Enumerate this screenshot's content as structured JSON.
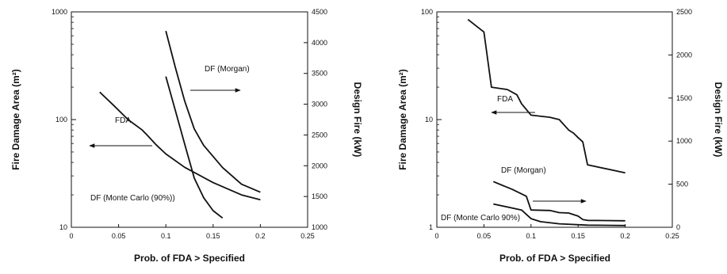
{
  "chart_data": [
    {
      "type": "line",
      "xlabel": "Prob. of FDA > Specified",
      "ylabel": "Fire Damage Area (m²)",
      "y2label": "Design Fire (kW)",
      "xlim": [
        0,
        0.25
      ],
      "ylim": [
        10,
        1000
      ],
      "ylog": true,
      "y2lim": [
        1000,
        4500
      ],
      "xticks": [
        "0",
        "0.05",
        "0.1",
        "0.15",
        "0.2",
        "0.25"
      ],
      "yticks": [
        "10",
        "100",
        "1000"
      ],
      "y2ticks": [
        "1000",
        "1500",
        "2000",
        "2500",
        "3000",
        "3500",
        "4000",
        "4500"
      ],
      "series": [
        {
          "name": "FDA",
          "axis": "left",
          "x": [
            0.03,
            0.045,
            0.06,
            0.075,
            0.08,
            0.09,
            0.1,
            0.12,
            0.15,
            0.18,
            0.2
          ],
          "y": [
            180,
            135,
            100,
            80,
            72,
            58,
            48,
            36,
            26,
            20,
            18
          ]
        },
        {
          "name": "DF (Morgan)",
          "axis": "right",
          "x": [
            0.1,
            0.11,
            0.12,
            0.13,
            0.14,
            0.15,
            0.16,
            0.18,
            0.2
          ],
          "y": [
            4190,
            3600,
            3050,
            2600,
            2330,
            2150,
            1970,
            1700,
            1570
          ]
        },
        {
          "name": "DF (Monte Carlo (90%))",
          "axis": "right",
          "x": [
            0.1,
            0.11,
            0.12,
            0.13,
            0.14,
            0.15,
            0.16
          ],
          "y": [
            3450,
            2900,
            2350,
            1800,
            1480,
            1270,
            1150
          ]
        }
      ],
      "annotations": [
        {
          "text": "DF (Morgan)",
          "arrow": "right"
        },
        {
          "text": "FDA",
          "arrow": "left"
        },
        {
          "text": "DF (Monte Carlo (90%))"
        }
      ]
    },
    {
      "type": "line",
      "xlabel": "Prob. of FDA > Specified",
      "ylabel": "Fire Damage Area (m²)",
      "y2label": "Design Fire (kW)",
      "xlim": [
        0,
        0.25
      ],
      "ylim": [
        1,
        100
      ],
      "ylog": true,
      "y2lim": [
        0,
        2500
      ],
      "xticks": [
        "0",
        "0.05",
        "0.1",
        "0.15",
        "0.2",
        "0.25"
      ],
      "yticks": [
        "1",
        "10",
        "100"
      ],
      "y2ticks": [
        "0",
        "500",
        "1000",
        "1500",
        "2000",
        "2500"
      ],
      "series": [
        {
          "name": "FDA",
          "axis": "left",
          "x": [
            0.033,
            0.05,
            0.058,
            0.075,
            0.085,
            0.09,
            0.1,
            0.12,
            0.13,
            0.14,
            0.145,
            0.15,
            0.155,
            0.16,
            0.2
          ],
          "y": [
            85,
            65,
            20,
            19,
            17,
            14,
            11,
            10.5,
            10,
            8,
            7.5,
            6.8,
            6.2,
            3.8,
            3.2
          ]
        },
        {
          "name": "DF (Morgan)",
          "axis": "right",
          "x": [
            0.06,
            0.08,
            0.095,
            0.1,
            0.12,
            0.13,
            0.14,
            0.15,
            0.155,
            0.16,
            0.2
          ],
          "y": [
            530,
            440,
            360,
            200,
            195,
            170,
            165,
            130,
            90,
            80,
            75
          ]
        },
        {
          "name": "DF (Monte Carlo (90%))",
          "axis": "right",
          "x": [
            0.06,
            0.09,
            0.1,
            0.11,
            0.13,
            0.16,
            0.2
          ],
          "y": [
            270,
            200,
            100,
            65,
            40,
            25,
            20
          ]
        }
      ],
      "annotations": [
        {
          "text": "FDA",
          "arrow": "left"
        },
        {
          "text": "DF (Morgan)",
          "arrow": "right"
        },
        {
          "text": "DF (Monte Carlo 90%)"
        }
      ]
    }
  ]
}
